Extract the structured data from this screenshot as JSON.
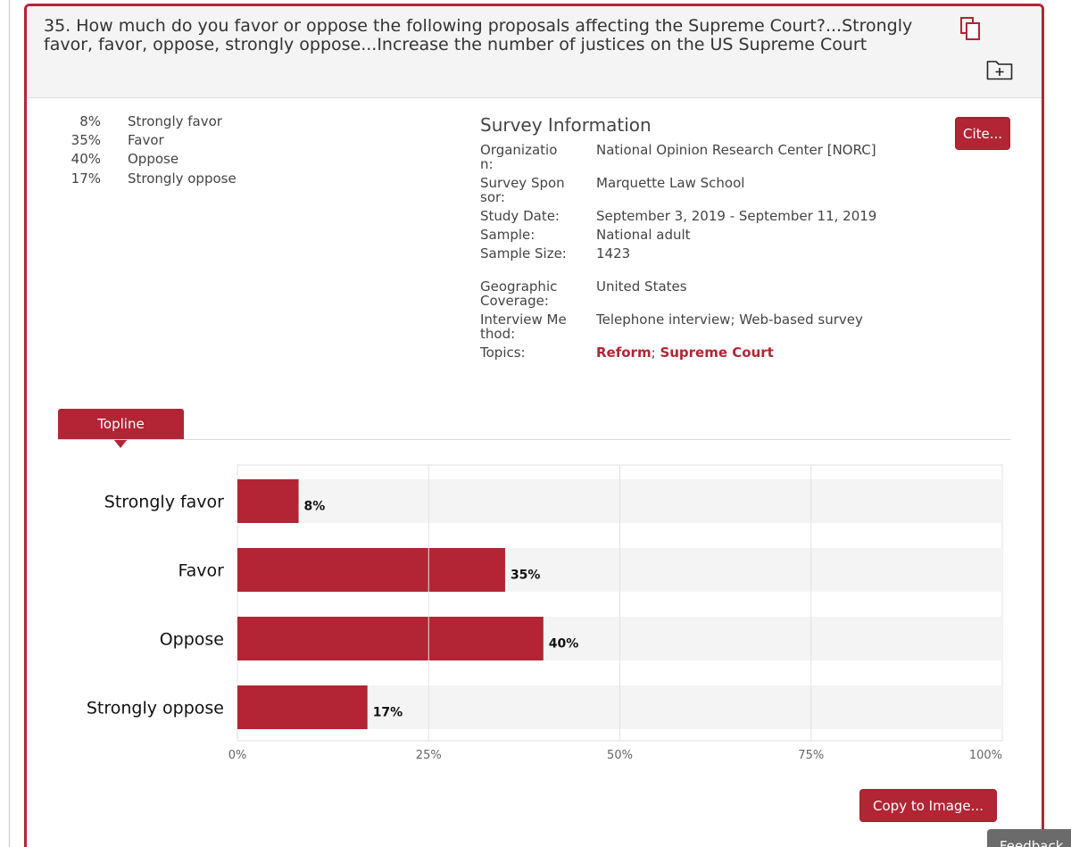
{
  "question": "35. How much do you favor or oppose the following proposals affecting the Supreme Court?...Strongly favor, favor, oppose, strongly oppose...Increase the number of justices on the US Supreme Court",
  "icons": {
    "copy": "copy-icon",
    "folder_add": "folder-add-icon"
  },
  "distribution": [
    {
      "pct": "8%",
      "label": "Strongly favor"
    },
    {
      "pct": "35%",
      "label": "Favor"
    },
    {
      "pct": "40%",
      "label": "Oppose"
    },
    {
      "pct": "17%",
      "label": "Strongly oppose"
    }
  ],
  "survey": {
    "title": "Survey Information",
    "cite_label": "Cite...",
    "org_key": "Organization:",
    "org_val": "National Opinion Research Center [NORC]",
    "sponsor_key": "Survey Sponsor:",
    "sponsor_val": "Marquette Law School",
    "date_key": "Study Date:",
    "date_val": "September 3, 2019 - September 11, 2019",
    "sample_key": "Sample:",
    "sample_val": "National adult",
    "size_key": "Sample Size:",
    "size_val": "1423",
    "geo_key": "Geographic Coverage:",
    "geo_val": "United States",
    "method_key": "Interview Method:",
    "method_val": "Telephone interview; Web-based survey",
    "topics_key": "Topics:",
    "topic_1": "Reform",
    "topic_sep": ";",
    "topic_2": "Supreme Court"
  },
  "tab_label": "Topline",
  "copy_image_label": "Copy to Image...",
  "feedback_label": "Feedback",
  "colors": {
    "accent": "#b32534",
    "track": "#f4f4f4"
  },
  "chart_data": {
    "type": "bar",
    "orientation": "horizontal",
    "categories": [
      "Strongly favor",
      "Favor",
      "Oppose",
      "Strongly oppose"
    ],
    "values": [
      8,
      35,
      40,
      17
    ],
    "value_labels": [
      "8%",
      "35%",
      "40%",
      "17%"
    ],
    "xlim": [
      0,
      100
    ],
    "xticks": [
      0,
      25,
      50,
      75,
      100
    ],
    "xtick_labels": [
      "0%",
      "25%",
      "50%",
      "75%",
      "100%"
    ],
    "grid": true,
    "legend": "none"
  }
}
